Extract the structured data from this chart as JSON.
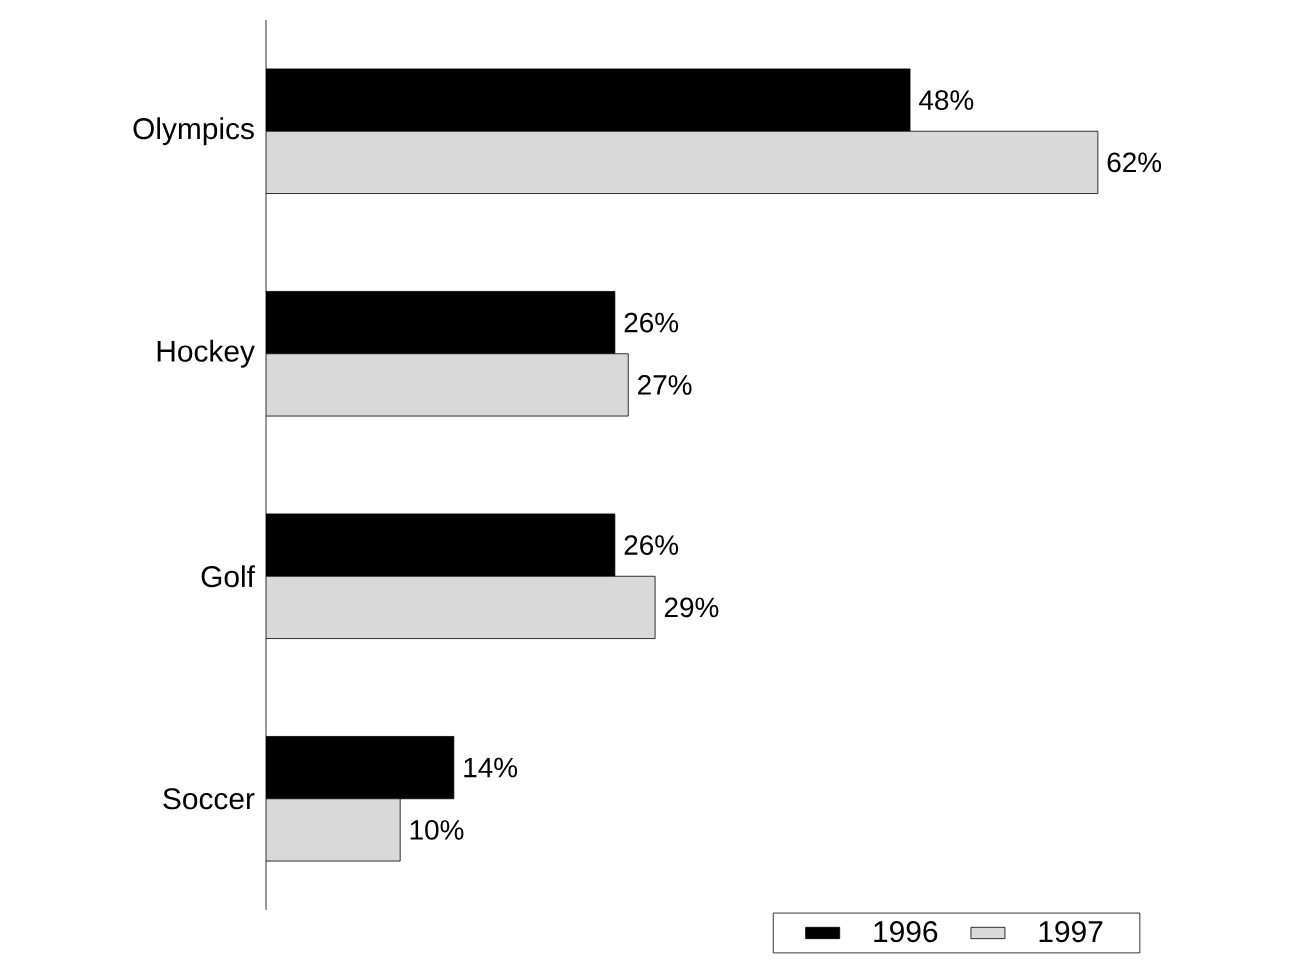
{
  "chart_data": {
    "type": "bar",
    "orientation": "horizontal",
    "categories": [
      "Olympics",
      "Hockey",
      "Golf",
      "Soccer"
    ],
    "series": [
      {
        "name": "1996",
        "color": "#000000",
        "values": [
          48,
          26,
          26,
          14
        ],
        "value_labels": [
          "48%",
          "26%",
          "26%",
          "14%"
        ]
      },
      {
        "name": "1997",
        "color": "#d9d9d9",
        "values": [
          62,
          27,
          29,
          10
        ],
        "value_labels": [
          "62%",
          "27%",
          "29%",
          "10%"
        ]
      }
    ],
    "legend": "bottom right"
  }
}
